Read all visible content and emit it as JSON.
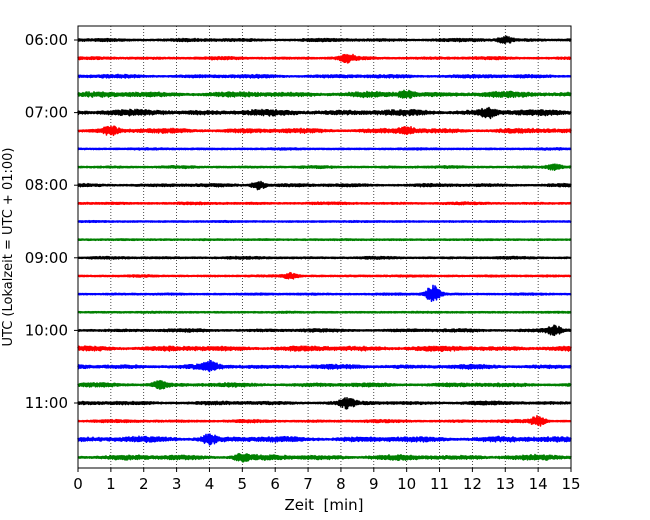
{
  "chart_data": {
    "type": "line",
    "title": "",
    "xlabel": "Zeit  [min]",
    "ylabel": "UTC (Lokalzeit = UTC + 01:00)",
    "xlim": [
      0,
      15
    ],
    "x_ticks": [
      "0",
      "1",
      "2",
      "3",
      "4",
      "5",
      "6",
      "7",
      "8",
      "9",
      "10",
      "11",
      "12",
      "13",
      "14",
      "15"
    ],
    "y_ticks": [
      "06:00",
      "07:00",
      "08:00",
      "09:00",
      "10:00",
      "11:00"
    ],
    "grid": "vertical dotted lines at each minute",
    "trace_colors": [
      "#000000",
      "#ff0000",
      "#0000ff",
      "#008000"
    ],
    "row_start_times": [
      "06:00",
      "06:15",
      "06:30",
      "06:45",
      "07:00",
      "07:15",
      "07:30",
      "07:45",
      "08:00",
      "08:15",
      "08:30",
      "08:45",
      "09:00",
      "09:15",
      "09:30",
      "09:45",
      "10:00",
      "10:15",
      "10:30",
      "10:45",
      "11:00",
      "11:15",
      "11:30",
      "11:45"
    ],
    "row_amplitudes": [
      0.16,
      0.14,
      0.18,
      0.28,
      0.3,
      0.24,
      0.1,
      0.12,
      0.16,
      0.12,
      0.08,
      0.08,
      0.12,
      0.1,
      0.1,
      0.08,
      0.16,
      0.26,
      0.22,
      0.2,
      0.18,
      0.14,
      0.28,
      0.26
    ],
    "bursts": [
      {
        "row": 0,
        "minute": 13.0,
        "amp": 0.35
      },
      {
        "row": 1,
        "minute": 8.2,
        "amp": 0.4
      },
      {
        "row": 3,
        "minute": 10.0,
        "amp": 0.35
      },
      {
        "row": 4,
        "minute": 12.5,
        "amp": 0.45
      },
      {
        "row": 5,
        "minute": 1.0,
        "amp": 0.45
      },
      {
        "row": 5,
        "minute": 10.0,
        "amp": 0.35
      },
      {
        "row": 7,
        "minute": 14.5,
        "amp": 0.3
      },
      {
        "row": 8,
        "minute": 5.5,
        "amp": 0.45
      },
      {
        "row": 13,
        "minute": 6.5,
        "amp": 0.3
      },
      {
        "row": 14,
        "minute": 10.8,
        "amp": 0.9
      },
      {
        "row": 16,
        "minute": 14.5,
        "amp": 0.45
      },
      {
        "row": 18,
        "minute": 4.0,
        "amp": 0.5
      },
      {
        "row": 19,
        "minute": 2.5,
        "amp": 0.4
      },
      {
        "row": 20,
        "minute": 8.2,
        "amp": 0.5
      },
      {
        "row": 21,
        "minute": 14.0,
        "amp": 0.5
      },
      {
        "row": 22,
        "minute": 4.0,
        "amp": 0.45
      },
      {
        "row": 23,
        "minute": 5.0,
        "amp": 0.45
      }
    ]
  }
}
